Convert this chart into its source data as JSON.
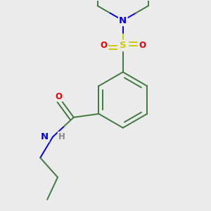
{
  "background_color": "#ebebeb",
  "atom_colors": {
    "C": "#3d7a3d",
    "N": "#0000ee",
    "O": "#ee0000",
    "S": "#cccc00",
    "H": "#888888"
  },
  "figsize": [
    3.0,
    3.0
  ],
  "dpi": 100,
  "lw": 1.4,
  "font_size": 8.5
}
